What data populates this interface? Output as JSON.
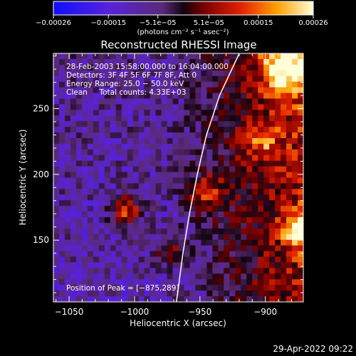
{
  "chart_data": {
    "type": "heatmap",
    "title": "Reconstructed RHESSI Image",
    "xlabel": "Heliocentric X (arcsec)",
    "ylabel": "Heliocentric Y (arcsec)",
    "xlim": [
      -1062,
      -871
    ],
    "ylim": [
      103,
      292
    ],
    "x_ticks": [
      -1050,
      -1000,
      -950,
      -900
    ],
    "y_ticks": [
      150,
      200,
      250
    ],
    "x_tick_labels": [
      "−1050",
      "−1000",
      "−950",
      "−900"
    ],
    "y_tick_labels": [
      "150",
      "200",
      "250"
    ],
    "colorbar": {
      "range": [
        -0.00026,
        0.00026
      ],
      "ticks": [
        -0.00026,
        -0.00015,
        -5.1e-05,
        5.1e-05,
        0.00015,
        0.00026
      ],
      "tick_labels": [
        "−0.00026",
        "−0.00015",
        "−5.1e−05",
        "5.1e−05",
        "0.00015",
        "0.00026"
      ],
      "units_label": "(photons cm⁻² s⁻¹ asec⁻²)"
    },
    "info_lines": [
      "28-Feb-2003 15:58:00.000 to 16:04:00.000",
      "Detectors: 3F 4F 5F 6F 7F 8F, Att 0",
      "Energy Range: 25.0 − 50.0 keV",
      "Clean     Total counts: 4.33E+03"
    ],
    "peak_text": "Position of Peak = [−875,289]",
    "peak": [
      -875,
      289
    ],
    "limb_arc_name": "solar-limb-arc",
    "limb_points": [
      [
        -920,
        292
      ],
      [
        -935,
        260
      ],
      [
        -945,
        230
      ],
      [
        -952,
        200
      ],
      [
        -958,
        170
      ],
      [
        -963,
        140
      ],
      [
        -967,
        110
      ],
      [
        -968,
        103
      ]
    ],
    "colormap": "rhessi-purple-red-yellow",
    "grid": false
  },
  "footer": {
    "timestamp": "29-Apr-2022 09:22"
  }
}
